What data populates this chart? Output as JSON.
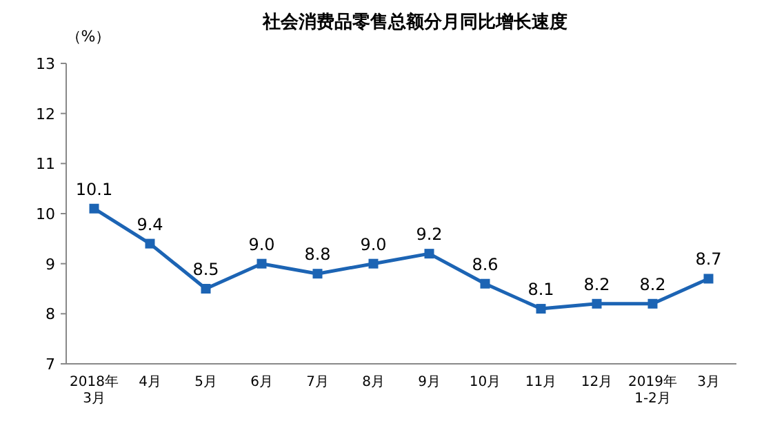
{
  "chart_data": {
    "type": "line",
    "title": "社会消费品零售总额分月同比增长速度",
    "ylabel": "（%）",
    "categories": [
      "2018年\n3月",
      "4月",
      "5月",
      "6月",
      "7月",
      "8月",
      "9月",
      "10月",
      "11月",
      "12月",
      "2019年\n1-2月",
      "3月"
    ],
    "series": [
      {
        "color": "#1c64b4",
        "values": [
          10.1,
          9.4,
          8.5,
          9.0,
          8.8,
          9.0,
          9.2,
          8.6,
          8.1,
          8.2,
          8.2,
          8.7
        ],
        "value_labels": [
          "10.1",
          "9.4",
          "8.5",
          "9.0",
          "8.8",
          "9.0",
          "9.2",
          "8.6",
          "8.1",
          "8.2",
          "8.2",
          "8.7"
        ]
      }
    ],
    "ylim": [
      7,
      13
    ],
    "yticks": [
      7,
      8,
      9,
      10,
      11,
      12,
      13
    ],
    "marker": "square",
    "line_style": "solid"
  }
}
